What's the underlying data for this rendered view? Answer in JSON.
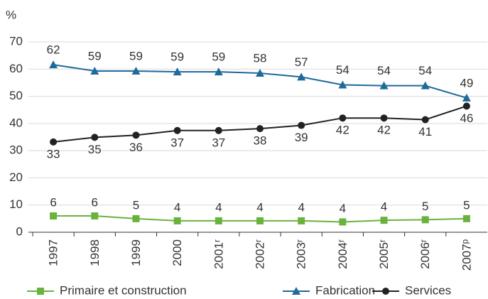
{
  "chart_data": {
    "type": "line",
    "y_label": "%",
    "categories": [
      "1997",
      "1998",
      "1999",
      "2000",
      "2001ʳ",
      "2002ʳ",
      "2003ʳ",
      "2004ʳ",
      "2005ʳ",
      "2006ʳ",
      "2007ᵖ"
    ],
    "series": [
      {
        "name": "Primaire et construction",
        "color": "#6ab23e",
        "marker": "square",
        "values": [
          6.0,
          6.0,
          5.0,
          4.2,
          4.2,
          4.2,
          4.2,
          3.8,
          4.4,
          4.6,
          5.0
        ],
        "value_labels": [
          "6",
          "6",
          "5",
          "4",
          "4",
          "4",
          "4",
          "4",
          "4",
          "5",
          "5"
        ]
      },
      {
        "name": "Fabrication",
        "color": "#1d6a9b",
        "marker": "triangle",
        "values": [
          61.6,
          59.3,
          59.3,
          59.0,
          59.0,
          58.5,
          57.1,
          54.2,
          53.9,
          53.9,
          49.4
        ],
        "value_labels": [
          "62",
          "59",
          "59",
          "59",
          "59",
          "58",
          "57",
          "54",
          "54",
          "54",
          "49"
        ]
      },
      {
        "name": "Services",
        "color": "#222222",
        "marker": "circle",
        "values": [
          33.2,
          34.9,
          35.7,
          37.4,
          37.4,
          38.1,
          39.3,
          42.0,
          42.0,
          41.4,
          46.4
        ],
        "value_labels": [
          "33",
          "35",
          "36",
          "37",
          "37",
          "38",
          "39",
          "42",
          "42",
          "41",
          "46"
        ]
      }
    ],
    "ylim": [
      0,
      70
    ],
    "yticks": [
      0,
      10,
      20,
      30,
      40,
      50,
      60,
      70
    ],
    "grid": true,
    "legend": "bottom"
  }
}
